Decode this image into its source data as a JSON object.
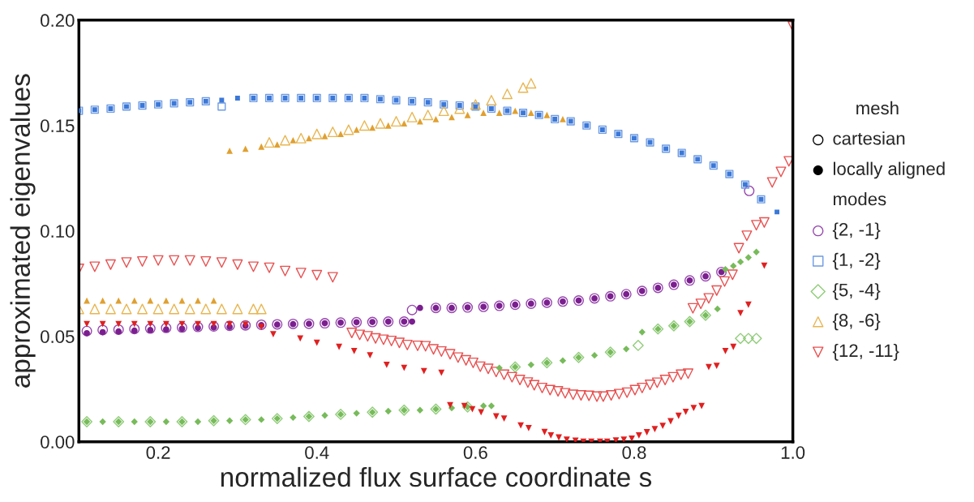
{
  "chart_data": {
    "type": "scatter",
    "xlabel": "normalized flux surface coordinate s",
    "ylabel": "approximated eigenvalues",
    "xlim": [
      0.1,
      1.0
    ],
    "ylim": [
      0.0,
      0.2
    ],
    "xticks": [
      {
        "value": 0.2,
        "label": "0.2"
      },
      {
        "value": 0.4,
        "label": "0.4"
      },
      {
        "value": 0.6,
        "label": "0.6"
      },
      {
        "value": 0.8,
        "label": "0.8"
      },
      {
        "value": 1.0,
        "label": "1.0"
      }
    ],
    "yticks": [
      {
        "value": 0.0,
        "label": "0.00"
      },
      {
        "value": 0.05,
        "label": "0.05"
      },
      {
        "value": 0.1,
        "label": "0.10"
      },
      {
        "value": 0.15,
        "label": "0.15"
      },
      {
        "value": 0.2,
        "label": "0.20"
      }
    ],
    "grid": false,
    "legend": "right",
    "legend_title": "mesh",
    "annotations": [
      "modes"
    ],
    "series": [
      {
        "name": "cartesian",
        "color": "#000000",
        "marker": "circle-open"
      },
      {
        "name": "locally aligned",
        "color": "#000000",
        "marker": "circle"
      },
      {
        "name": "{2, -1}",
        "color": "#9646ad",
        "marker": "circle-open",
        "x": [
          0.11,
          0.13,
          0.15,
          0.17,
          0.19,
          0.21,
          0.23,
          0.25,
          0.27,
          0.29,
          0.31,
          0.33,
          0.35,
          0.37,
          0.39,
          0.41,
          0.43,
          0.45,
          0.47,
          0.49,
          0.51,
          0.52,
          0.55,
          0.57,
          0.59,
          0.61,
          0.63,
          0.65,
          0.67,
          0.69,
          0.71,
          0.73,
          0.75,
          0.77,
          0.79,
          0.81,
          0.83,
          0.85,
          0.87,
          0.89,
          0.91,
          0.945
        ],
        "values": [
          0.0525,
          0.053,
          0.0532,
          0.0535,
          0.0537,
          0.054,
          0.0542,
          0.0545,
          0.0547,
          0.055,
          0.0552,
          0.0555,
          0.0557,
          0.0559,
          0.056,
          0.0562,
          0.0565,
          0.0567,
          0.0568,
          0.057,
          0.057,
          0.0625,
          0.0635,
          0.0635,
          0.0637,
          0.064,
          0.0645,
          0.065,
          0.0655,
          0.066,
          0.0665,
          0.067,
          0.068,
          0.069,
          0.07,
          0.0715,
          0.073,
          0.0745,
          0.0765,
          0.0785,
          0.0805,
          0.119
        ]
      },
      {
        "color": "#7b1f8f",
        "marker": "circle",
        "x": [
          0.11,
          0.13,
          0.15,
          0.17,
          0.19,
          0.21,
          0.23,
          0.25,
          0.27,
          0.29,
          0.31,
          0.33,
          0.35,
          0.37,
          0.39,
          0.41,
          0.43,
          0.45,
          0.47,
          0.49,
          0.51,
          0.52,
          0.53,
          0.55,
          0.57,
          0.59,
          0.61,
          0.63,
          0.65,
          0.67,
          0.69,
          0.71,
          0.73,
          0.75,
          0.77,
          0.79,
          0.81,
          0.83,
          0.85,
          0.87,
          0.89,
          0.91
        ],
        "values": [
          0.0515,
          0.052,
          0.0523,
          0.0527,
          0.053,
          0.0533,
          0.0536,
          0.054,
          0.0542,
          0.0545,
          0.055,
          0.0553,
          0.0556,
          0.0558,
          0.056,
          0.0562,
          0.0565,
          0.0567,
          0.0568,
          0.057,
          0.057,
          0.057,
          0.0635,
          0.0635,
          0.0635,
          0.0637,
          0.064,
          0.0645,
          0.065,
          0.0655,
          0.066,
          0.0665,
          0.067,
          0.068,
          0.069,
          0.07,
          0.0715,
          0.073,
          0.0745,
          0.0765,
          0.0785,
          0.0805
        ]
      },
      {
        "name": "{1, -2}",
        "color": "#6d9be4",
        "marker": "square-open",
        "x": [
          0.1,
          0.12,
          0.14,
          0.16,
          0.18,
          0.2,
          0.22,
          0.24,
          0.26,
          0.28,
          0.32,
          0.34,
          0.36,
          0.38,
          0.4,
          0.42,
          0.44,
          0.46,
          0.48,
          0.5,
          0.52,
          0.54,
          0.56,
          0.58,
          0.6,
          0.62,
          0.64,
          0.66,
          0.68,
          0.7,
          0.72,
          0.74,
          0.76,
          0.78,
          0.8,
          0.82,
          0.84,
          0.86,
          0.88,
          0.9,
          0.92,
          0.94,
          0.96
        ],
        "values": [
          0.157,
          0.1575,
          0.158,
          0.159,
          0.1595,
          0.16,
          0.1605,
          0.161,
          0.1615,
          0.159,
          0.163,
          0.163,
          0.163,
          0.163,
          0.163,
          0.163,
          0.163,
          0.163,
          0.1625,
          0.162,
          0.1615,
          0.161,
          0.16,
          0.1595,
          0.159,
          0.158,
          0.157,
          0.156,
          0.155,
          0.153,
          0.152,
          0.15,
          0.148,
          0.146,
          0.144,
          0.142,
          0.139,
          0.137,
          0.134,
          0.131,
          0.127,
          0.122,
          0.115
        ]
      },
      {
        "color": "#3b78d8",
        "marker": "square",
        "x": [
          0.1,
          0.12,
          0.14,
          0.16,
          0.18,
          0.2,
          0.22,
          0.24,
          0.26,
          0.28,
          0.3,
          0.32,
          0.34,
          0.36,
          0.38,
          0.4,
          0.42,
          0.44,
          0.46,
          0.48,
          0.5,
          0.52,
          0.54,
          0.56,
          0.58,
          0.6,
          0.62,
          0.64,
          0.66,
          0.68,
          0.7,
          0.72,
          0.74,
          0.76,
          0.78,
          0.8,
          0.82,
          0.84,
          0.86,
          0.88,
          0.9,
          0.92,
          0.94,
          0.96,
          0.98
        ],
        "values": [
          0.157,
          0.1575,
          0.158,
          0.159,
          0.1595,
          0.16,
          0.1605,
          0.161,
          0.1615,
          0.162,
          0.163,
          0.163,
          0.163,
          0.163,
          0.163,
          0.163,
          0.163,
          0.163,
          0.163,
          0.1625,
          0.162,
          0.1615,
          0.161,
          0.16,
          0.1595,
          0.159,
          0.158,
          0.157,
          0.156,
          0.155,
          0.153,
          0.152,
          0.15,
          0.148,
          0.146,
          0.144,
          0.142,
          0.139,
          0.137,
          0.134,
          0.131,
          0.127,
          0.122,
          0.115,
          0.109
        ]
      },
      {
        "name": "{5, -4}",
        "color": "#8fcc78",
        "marker": "diamond-open",
        "x": [
          0.11,
          0.15,
          0.19,
          0.23,
          0.27,
          0.31,
          0.35,
          0.39,
          0.43,
          0.47,
          0.51,
          0.55,
          0.59,
          0.65,
          0.69,
          0.73,
          0.77,
          0.805,
          0.83,
          0.85,
          0.87,
          0.89,
          0.934,
          0.944,
          0.954
        ],
        "values": [
          0.0095,
          0.0095,
          0.0095,
          0.0095,
          0.01,
          0.0105,
          0.011,
          0.012,
          0.013,
          0.014,
          0.015,
          0.0155,
          0.0165,
          0.0355,
          0.0375,
          0.04,
          0.0425,
          0.0457,
          0.0535,
          0.055,
          0.057,
          0.06,
          0.049,
          0.049,
          0.049
        ]
      },
      {
        "color": "#77bb5a",
        "marker": "diamond",
        "x": [
          0.11,
          0.13,
          0.15,
          0.17,
          0.19,
          0.21,
          0.23,
          0.25,
          0.27,
          0.29,
          0.31,
          0.33,
          0.35,
          0.37,
          0.39,
          0.41,
          0.43,
          0.45,
          0.47,
          0.49,
          0.51,
          0.53,
          0.55,
          0.57,
          0.59,
          0.61,
          0.62,
          0.63,
          0.65,
          0.67,
          0.69,
          0.71,
          0.73,
          0.75,
          0.77,
          0.79,
          0.81,
          0.83,
          0.85,
          0.87,
          0.89,
          0.905,
          0.915,
          0.925,
          0.934,
          0.944,
          0.954
        ],
        "values": [
          0.0095,
          0.0095,
          0.0095,
          0.0095,
          0.0095,
          0.0095,
          0.0095,
          0.0095,
          0.01,
          0.01,
          0.0105,
          0.0105,
          0.011,
          0.0115,
          0.012,
          0.0125,
          0.013,
          0.0135,
          0.014,
          0.0145,
          0.015,
          0.015,
          0.0155,
          0.016,
          0.0165,
          0.017,
          0.017,
          0.035,
          0.0355,
          0.0365,
          0.0375,
          0.0385,
          0.04,
          0.041,
          0.0425,
          0.044,
          0.052,
          0.0535,
          0.055,
          0.057,
          0.06,
          0.063,
          0.0818,
          0.0834,
          0.0853,
          0.0874,
          0.09
        ]
      },
      {
        "name": "{8, -6}",
        "color": "#e8b652",
        "marker": "triangle-open",
        "x": [
          0.1,
          0.12,
          0.14,
          0.16,
          0.18,
          0.2,
          0.22,
          0.24,
          0.26,
          0.28,
          0.3,
          0.32,
          0.33,
          0.34,
          0.36,
          0.38,
          0.4,
          0.42,
          0.44,
          0.46,
          0.48,
          0.5,
          0.52,
          0.54,
          0.56,
          0.58,
          0.6,
          0.62,
          0.64,
          0.66,
          0.67
        ],
        "values": [
          0.063,
          0.063,
          0.063,
          0.063,
          0.063,
          0.063,
          0.063,
          0.063,
          0.063,
          0.063,
          0.063,
          0.063,
          0.063,
          0.142,
          0.143,
          0.144,
          0.146,
          0.147,
          0.148,
          0.15,
          0.151,
          0.152,
          0.154,
          0.155,
          0.157,
          0.158,
          0.16,
          0.162,
          0.165,
          0.168,
          0.17
        ]
      },
      {
        "color": "#e0a030",
        "marker": "triangle",
        "x": [
          0.11,
          0.13,
          0.15,
          0.17,
          0.19,
          0.21,
          0.23,
          0.25,
          0.27,
          0.29,
          0.31,
          0.33,
          0.35,
          0.37,
          0.39,
          0.41,
          0.43,
          0.45,
          0.47,
          0.49,
          0.51,
          0.53,
          0.55,
          0.57,
          0.59,
          0.61,
          0.63,
          0.65,
          0.67,
          0.69,
          0.71
        ],
        "values": [
          0.067,
          0.067,
          0.067,
          0.067,
          0.067,
          0.067,
          0.067,
          0.067,
          0.067,
          0.138,
          0.139,
          0.14,
          0.141,
          0.143,
          0.144,
          0.145,
          0.146,
          0.148,
          0.149,
          0.15,
          0.151,
          0.152,
          0.153,
          0.154,
          0.155,
          0.156,
          0.156,
          0.157,
          0.156,
          0.155,
          0.153
        ]
      },
      {
        "name": "{12, -11}",
        "color": "#e85050",
        "marker": "triangle-down-open",
        "x": [
          0.1,
          0.12,
          0.14,
          0.16,
          0.18,
          0.2,
          0.22,
          0.24,
          0.26,
          0.28,
          0.3,
          0.32,
          0.34,
          0.36,
          0.38,
          0.4,
          0.42,
          0.444,
          0.454,
          0.464,
          0.474,
          0.484,
          0.494,
          0.504,
          0.514,
          0.527,
          0.537,
          0.547,
          0.557,
          0.568,
          0.578,
          0.588,
          0.597,
          0.606,
          0.616,
          0.626,
          0.636,
          0.646,
          0.656,
          0.666,
          0.674,
          0.684,
          0.694,
          0.704,
          0.713,
          0.723,
          0.733,
          0.743,
          0.753,
          0.761,
          0.771,
          0.781,
          0.791,
          0.801,
          0.81,
          0.82,
          0.829,
          0.839,
          0.849,
          0.859,
          0.868,
          0.874,
          0.884,
          0.894,
          0.904,
          0.914,
          0.924,
          0.932,
          0.942,
          0.954,
          0.964,
          0.974,
          0.985,
          0.995,
          1.0
        ],
        "values": [
          0.082,
          0.083,
          0.084,
          0.085,
          0.0855,
          0.086,
          0.086,
          0.086,
          0.0855,
          0.085,
          0.084,
          0.083,
          0.0825,
          0.081,
          0.08,
          0.079,
          0.078,
          0.0516,
          0.0507,
          0.05,
          0.049,
          0.0484,
          0.0478,
          0.0469,
          0.0459,
          0.0455,
          0.0453,
          0.0438,
          0.0428,
          0.0415,
          0.0399,
          0.0386,
          0.0374,
          0.0356,
          0.0346,
          0.0331,
          0.0318,
          0.0306,
          0.0293,
          0.0281,
          0.0268,
          0.0255,
          0.0245,
          0.0239,
          0.023,
          0.0223,
          0.022,
          0.0218,
          0.0214,
          0.0214,
          0.022,
          0.0226,
          0.0233,
          0.0245,
          0.0255,
          0.027,
          0.028,
          0.0293,
          0.0306,
          0.0318,
          0.0323,
          0.0633,
          0.0654,
          0.068,
          0.0717,
          0.076,
          0.0792,
          0.0918,
          0.0977,
          0.1027,
          0.104,
          0.123,
          0.128,
          0.133,
          0.197
        ]
      },
      {
        "color": "#e02020",
        "marker": "triangle-down",
        "x": [
          0.11,
          0.13,
          0.15,
          0.17,
          0.19,
          0.21,
          0.23,
          0.25,
          0.27,
          0.29,
          0.31,
          0.33,
          0.345,
          0.379,
          0.4,
          0.428,
          0.447,
          0.467,
          0.488,
          0.51,
          0.535,
          0.557,
          0.568,
          0.586,
          0.596,
          0.607,
          0.626,
          0.636,
          0.657,
          0.667,
          0.687,
          0.695,
          0.705,
          0.715,
          0.726,
          0.736,
          0.746,
          0.757,
          0.766,
          0.777,
          0.787,
          0.797,
          0.806,
          0.816,
          0.826,
          0.836,
          0.846,
          0.856,
          0.865,
          0.875,
          0.885,
          0.894,
          0.904,
          0.915,
          0.925,
          0.934,
          0.944,
          0.964
        ],
        "values": [
          0.0558,
          0.0558,
          0.0558,
          0.0558,
          0.0558,
          0.0558,
          0.0558,
          0.0558,
          0.0558,
          0.0557,
          0.0556,
          0.0545,
          0.051,
          0.049,
          0.047,
          0.045,
          0.043,
          0.041,
          0.0365,
          0.035,
          0.0335,
          0.0327,
          0.0173,
          0.017,
          0.0154,
          0.014,
          0.012,
          0.011,
          0.0077,
          0.0065,
          0.0046,
          0.003,
          0.002,
          0.001,
          0.0005,
          0.0,
          0.0,
          0.0,
          0.0,
          0.0006,
          0.001,
          0.0015,
          0.003,
          0.0045,
          0.006,
          0.0075,
          0.0097,
          0.0123,
          0.0142,
          0.016,
          0.017,
          0.0354,
          0.036,
          0.043,
          0.045,
          0.061,
          0.065,
          0.0835
        ]
      }
    ]
  }
}
